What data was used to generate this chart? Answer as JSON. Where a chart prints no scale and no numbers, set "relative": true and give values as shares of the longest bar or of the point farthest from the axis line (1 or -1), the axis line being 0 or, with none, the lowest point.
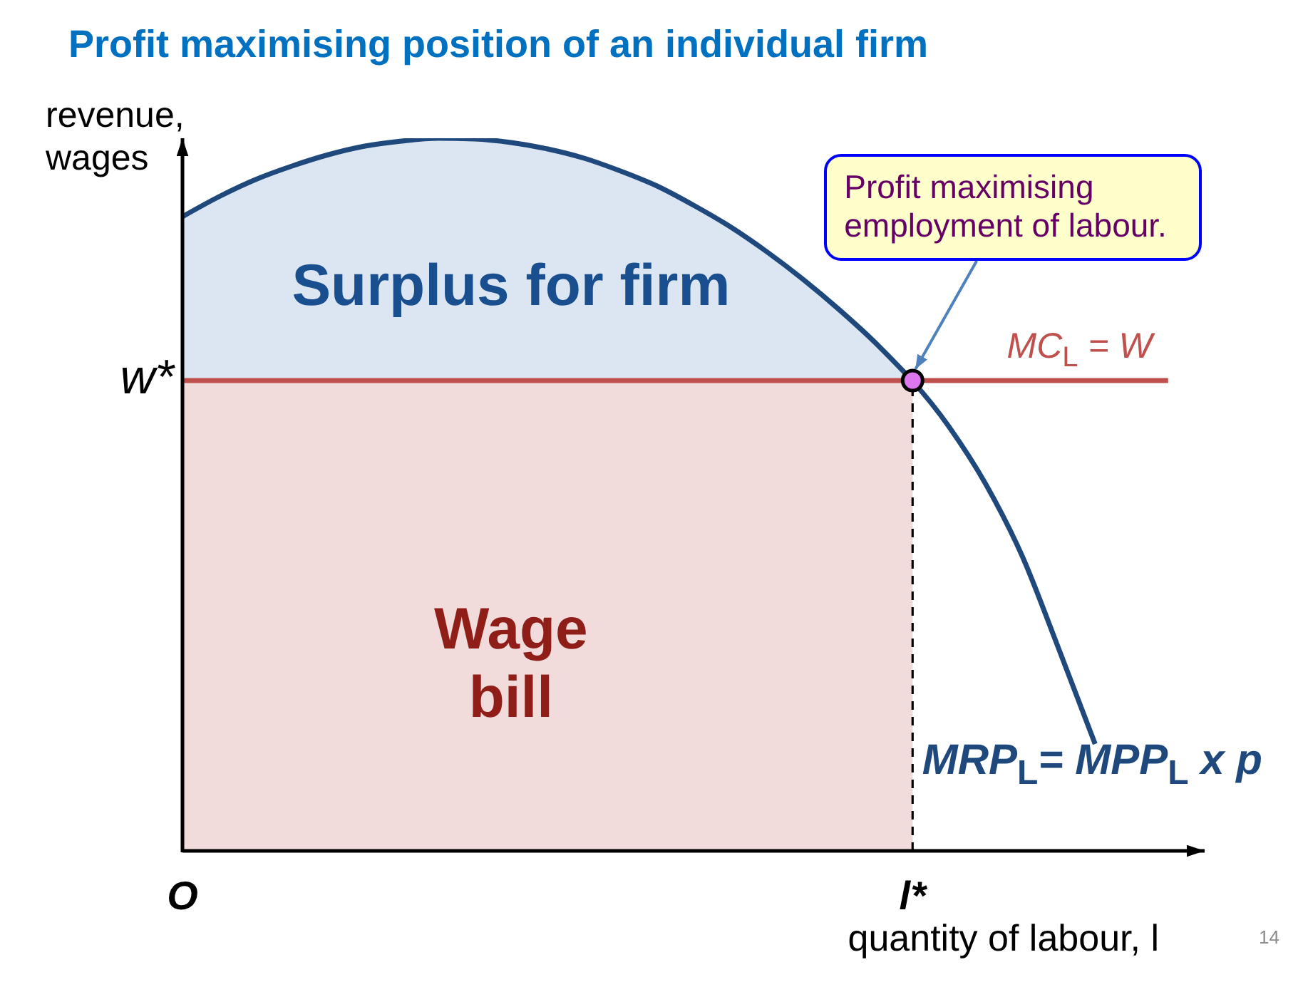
{
  "chart_data": {
    "type": "line",
    "title": "Profit maximising position of an individual firm",
    "xlabel": "quantity of labour, l",
    "ylabel": "revenue, wages",
    "relative": true,
    "categories": [
      "O",
      null,
      null,
      null,
      null,
      null,
      null,
      null,
      null,
      null,
      null,
      null,
      null,
      null,
      null,
      null,
      null,
      null,
      null,
      null,
      "l*",
      null,
      null,
      null,
      null,
      null,
      null,
      null,
      null
    ],
    "series": [
      {
        "type": "area",
        "name": "Surplus for firm",
        "color": "#dce6f2",
        "values": [
          0.89,
          0.918,
          0.942,
          0.961,
          0.977,
          0.989,
          0.996,
          1,
          0.999,
          0.994,
          0.985,
          0.972,
          0.954,
          0.933,
          0.906,
          0.876,
          0.841,
          0.802,
          0.759,
          0.712,
          0.66,
          null,
          null,
          null,
          null,
          null,
          null,
          null,
          null
        ]
      },
      {
        "type": "area",
        "name": "Wage bill",
        "color": "#f2dcdb",
        "values": [
          0.66,
          0.66,
          0.66,
          0.66,
          0.66,
          0.66,
          0.66,
          0.66,
          0.66,
          0.66,
          0.66,
          0.66,
          0.66,
          0.66,
          0.66,
          0.66,
          0.66,
          0.66,
          0.66,
          0.66,
          0.66,
          null,
          null,
          null,
          null,
          null,
          null,
          null,
          null
        ]
      },
      {
        "name": "MC$_{L}$ = W",
        "color": "#c0504d",
        "values": [
          0.66,
          0.66,
          0.66,
          0.66,
          0.66,
          0.66,
          0.66,
          0.66,
          0.66,
          0.66,
          0.66,
          0.66,
          0.66,
          0.66,
          0.66,
          0.66,
          0.66,
          0.66,
          0.66,
          0.66,
          null,
          0.66,
          0.66,
          0.66,
          0.66,
          0.66,
          0.66,
          0.66,
          null
        ]
      },
      {
        "x": [
          "l*",
          "l*"
        ],
        "values": [
          0,
          0.66
        ],
        "color": "#000000",
        "line_style": "dashed"
      },
      {
        "name": "MRP$_{L}$= MPP$_{L}$ x p",
        "color": "#1f497d",
        "values": [
          0.89,
          0.918,
          0.942,
          0.961,
          0.977,
          0.989,
          0.996,
          1,
          0.999,
          0.994,
          0.985,
          0.972,
          0.954,
          0.933,
          0.906,
          0.876,
          0.841,
          0.802,
          0.759,
          0.712,
          null,
          0.595,
          0.515,
          0.414,
          0.284,
          0.15,
          null,
          null,
          null
        ]
      },
      {
        "type": "scatter",
        "x": [
          "l*"
        ],
        "values": [
          0.66
        ],
        "color": "#dd77ee",
        "marker": "circle"
      }
    ],
    "annotations": [
      "w*",
      {
        "text": "Profit maximising employment of labour.",
        "x": "l*",
        "y": 0.66
      },
      "14"
    ]
  }
}
